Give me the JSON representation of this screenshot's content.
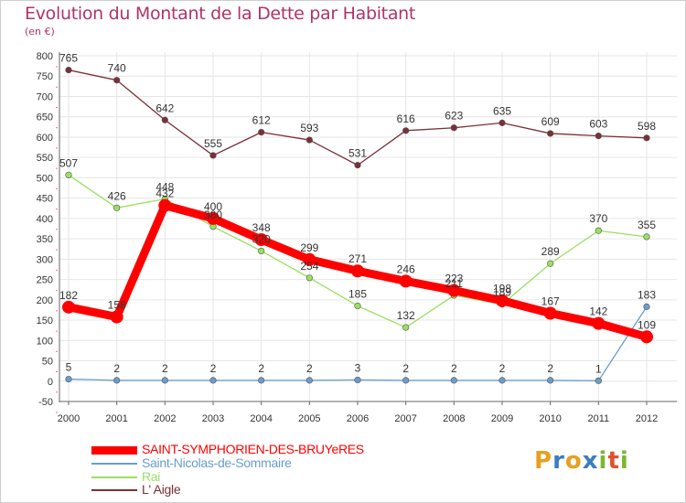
{
  "header": {
    "title": "Evolution du Montant de la Dette par Habitant",
    "subtitle": "(en €)"
  },
  "logo": {
    "text": "Proxiti",
    "letters": [
      "P",
      "r",
      "o",
      "x",
      "i",
      "t",
      "i"
    ],
    "colors": [
      "#e8a020",
      "#3a7dc0",
      "#e8a020",
      "#3a7dc0",
      "#7ab830",
      "#e05030",
      "#7ab830"
    ]
  },
  "chart_data": {
    "type": "line",
    "x": [
      "2000",
      "2001",
      "2002",
      "2003",
      "2004",
      "2005",
      "2006",
      "2007",
      "2008",
      "2009",
      "2010",
      "2011",
      "2012"
    ],
    "ylim": [
      -50,
      800
    ],
    "yticks": [
      "-50",
      "0",
      "50",
      "100",
      "150",
      "200",
      "250",
      "300",
      "350",
      "400",
      "450",
      "500",
      "550",
      "600",
      "650",
      "700",
      "750",
      "800"
    ],
    "grid": true,
    "legend_position": "bottom-left",
    "series": [
      {
        "name": "L' Aigle",
        "color": "#7a3038",
        "values": [
          765,
          740,
          642,
          555,
          612,
          593,
          531,
          616,
          623,
          635,
          609,
          603,
          598
        ],
        "labels": [
          "765",
          "740",
          "642",
          "555",
          "612",
          "593",
          "531",
          "616",
          "623",
          "635",
          "609",
          "603",
          "598"
        ]
      },
      {
        "name": "Rai",
        "color": "#99e060",
        "values": [
          507,
          426,
          448,
          380,
          320,
          254,
          185,
          132,
          211,
          189,
          289,
          370,
          355
        ],
        "labels": [
          "507",
          "426",
          "448",
          "380",
          "320",
          "254",
          "185",
          "132",
          "211",
          "189",
          "289",
          "370",
          "355"
        ]
      },
      {
        "name": "Saint-Nicolas-de-Sommaire",
        "color": "#6a9ccc",
        "values": [
          5,
          2,
          2,
          2,
          2,
          2,
          3,
          2,
          2,
          2,
          2,
          1,
          183
        ],
        "labels": [
          "5",
          "2",
          "2",
          "2",
          "2",
          "2",
          "3",
          "2",
          "2",
          "2",
          "2",
          "1",
          "183"
        ]
      },
      {
        "name": "SAINT-SYMPHORIEN-DES-BRUYeRES",
        "color": "#ff0000",
        "values": [
          182,
          158,
          432,
          400,
          348,
          299,
          271,
          246,
          223,
          198,
          167,
          142,
          109
        ],
        "labels": [
          "182",
          "158",
          "432",
          "400",
          "348",
          "299",
          "271",
          "246",
          "223",
          "198",
          "167",
          "142",
          "109"
        ]
      }
    ],
    "legend": [
      {
        "name": "SAINT-SYMPHORIEN-DES-BRUYeRES",
        "color": "#ff0000"
      },
      {
        "name": "Saint-Nicolas-de-Sommaire",
        "color": "#6a9ccc"
      },
      {
        "name": "Rai",
        "color": "#99e060"
      },
      {
        "name": "L' Aigle",
        "color": "#7a3038"
      }
    ]
  }
}
